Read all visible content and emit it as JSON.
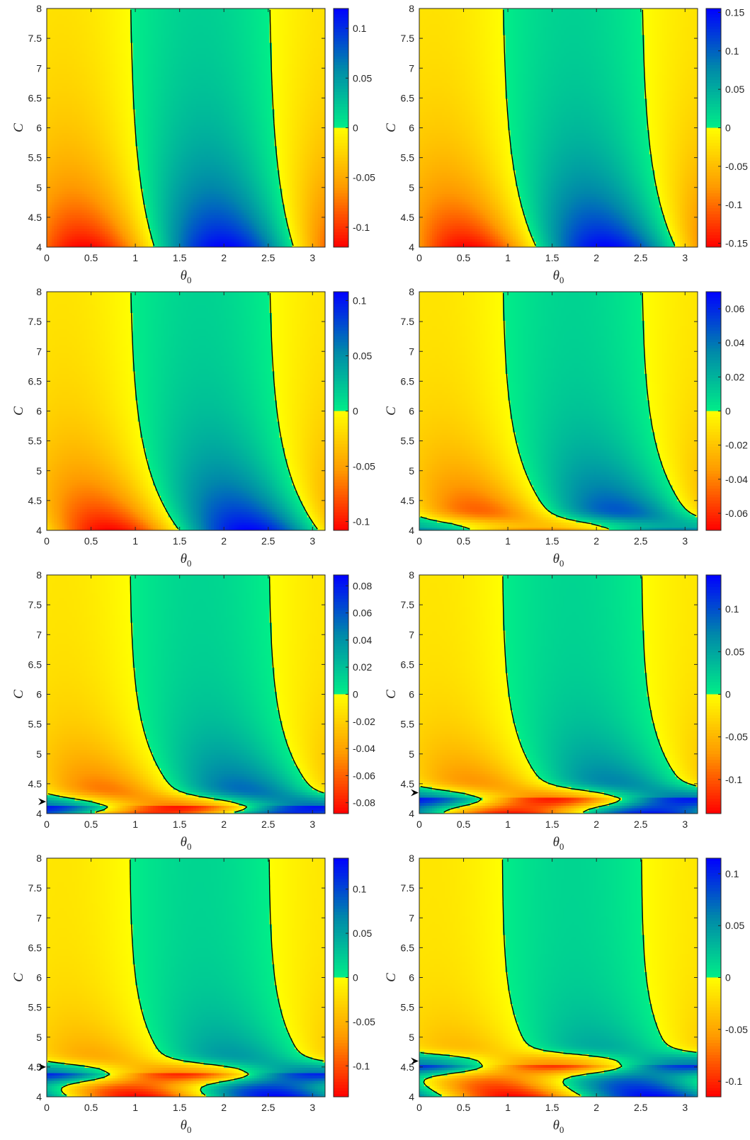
{
  "chart_data": [
    {
      "type": "heatmap",
      "xlabel": "θ",
      "xlabel_sub": "0",
      "ylabel": "C",
      "xlim": [
        0,
        3.1416
      ],
      "ylim": [
        4,
        8
      ],
      "xticks": [
        "0",
        "0.5",
        "1",
        "1.5",
        "2",
        "2.5",
        "3"
      ],
      "yticks": [
        "4",
        "4.5",
        "5",
        "5.5",
        "6",
        "6.5",
        "7",
        "7.5",
        "8"
      ],
      "colorbar": {
        "range": [
          -0.12,
          0.12
        ],
        "ticks": [
          "0.1",
          "0.05",
          "0",
          "-0.05",
          "-0.1"
        ],
        "tick_values": [
          0.1,
          0.05,
          0,
          -0.05,
          -0.1
        ]
      },
      "pattern": {
        "decay": 1.2,
        "curve": 0.8,
        "lowmode": 0,
        "lowy": 4.0,
        "cut": 0
      }
    },
    {
      "type": "heatmap",
      "xlabel": "θ",
      "xlabel_sub": "0",
      "ylabel": "C",
      "xlim": [
        0,
        3.1416
      ],
      "ylim": [
        4,
        8
      ],
      "xticks": [
        "0",
        "0.5",
        "1",
        "1.5",
        "2",
        "2.5",
        "3"
      ],
      "yticks": [
        "4",
        "4.5",
        "5",
        "5.5",
        "6",
        "6.5",
        "7",
        "7.5",
        "8"
      ],
      "colorbar": {
        "range": [
          -0.155,
          0.155
        ],
        "ticks": [
          "0.15",
          "0.1",
          "0.05",
          "0",
          "-0.05",
          "-0.1",
          "-0.15"
        ],
        "tick_values": [
          0.15,
          0.1,
          0.05,
          0,
          -0.05,
          -0.1,
          -0.15
        ]
      },
      "pattern": {
        "decay": 1.1,
        "curve": 1.1,
        "lowmode": 0,
        "lowy": 4.0,
        "cut": 0
      }
    },
    {
      "type": "heatmap",
      "xlabel": "θ",
      "xlabel_sub": "0",
      "ylabel": "C",
      "xlim": [
        0,
        3.1416
      ],
      "ylim": [
        4,
        8
      ],
      "xticks": [
        "0",
        "0.5",
        "1",
        "1.5",
        "2",
        "2.5",
        "3"
      ],
      "yticks": [
        "4",
        "4.5",
        "5",
        "5.5",
        "6",
        "6.5",
        "7",
        "7.5",
        "8"
      ],
      "colorbar": {
        "range": [
          -0.108,
          0.108
        ],
        "ticks": [
          "0.1",
          "0.05",
          "0",
          "-0.05",
          "-0.1"
        ],
        "tick_values": [
          0.1,
          0.05,
          0,
          -0.05,
          -0.1
        ]
      },
      "pattern": {
        "decay": 1.0,
        "curve": 1.6,
        "lowmode": 0,
        "lowy": 4.0,
        "cut": 0
      }
    },
    {
      "type": "heatmap",
      "xlabel": "θ",
      "xlabel_sub": "0",
      "ylabel": "C",
      "xlim": [
        0,
        3.1416
      ],
      "ylim": [
        4,
        8
      ],
      "xticks": [
        "0",
        "0.5",
        "1",
        "1.5",
        "2",
        "2.5",
        "3"
      ],
      "yticks": [
        "4",
        "4.5",
        "5",
        "5.5",
        "6",
        "6.5",
        "7",
        "7.5",
        "8"
      ],
      "colorbar": {
        "range": [
          -0.07,
          0.07
        ],
        "ticks": [
          "0.06",
          "0.04",
          "0.02",
          "0",
          "-0.02",
          "-0.04",
          "-0.06"
        ],
        "tick_values": [
          0.06,
          0.04,
          0.02,
          0,
          -0.02,
          -0.04,
          -0.06
        ]
      },
      "pattern": {
        "decay": 0.9,
        "curve": 2.0,
        "lowmode": 0.5,
        "lowy": 4.05,
        "cut": 0
      }
    },
    {
      "type": "heatmap",
      "xlabel": "θ",
      "xlabel_sub": "0",
      "ylabel": "C",
      "xlim": [
        0,
        3.1416
      ],
      "ylim": [
        4,
        8
      ],
      "xticks": [
        "0",
        "0.5",
        "1",
        "1.5",
        "2",
        "2.5",
        "3"
      ],
      "yticks": [
        "4",
        "4.5",
        "5",
        "5.5",
        "6",
        "6.5",
        "7",
        "7.5",
        "8"
      ],
      "colorbar": {
        "range": [
          -0.088,
          0.088
        ],
        "ticks": [
          "0.08",
          "0.06",
          "0.04",
          "0.02",
          "0",
          "-0.02",
          "-0.04",
          "-0.06",
          "-0.08"
        ],
        "tick_values": [
          0.08,
          0.06,
          0.04,
          0.02,
          0,
          -0.02,
          -0.04,
          -0.06,
          -0.08
        ]
      },
      "pattern": {
        "decay": 0.8,
        "curve": 2.2,
        "lowmode": 1,
        "lowy": 4.12,
        "cut": 4.2
      },
      "annotation": {
        "text": "arrow",
        "c_value": 4.2
      }
    },
    {
      "type": "heatmap",
      "xlabel": "θ",
      "xlabel_sub": "0",
      "ylabel": "C",
      "xlim": [
        0,
        3.1416
      ],
      "ylim": [
        4,
        8
      ],
      "xticks": [
        "0",
        "0.5",
        "1",
        "1.5",
        "2",
        "2.5",
        "3"
      ],
      "yticks": [
        "4",
        "4.5",
        "5",
        "5.5",
        "6",
        "6.5",
        "7",
        "7.5",
        "8"
      ],
      "colorbar": {
        "range": [
          -0.14,
          0.14
        ],
        "ticks": [
          "0.1",
          "0.05",
          "0",
          "-0.05",
          "-0.1"
        ],
        "tick_values": [
          0.1,
          0.05,
          0,
          -0.05,
          -0.1
        ]
      },
      "pattern": {
        "decay": 0.75,
        "curve": 2.4,
        "lowmode": 1,
        "lowy": 4.25,
        "cut": 4.35
      },
      "annotation": {
        "text": "arrow",
        "c_value": 4.35
      }
    },
    {
      "type": "heatmap",
      "xlabel": "θ",
      "xlabel_sub": "0",
      "ylabel": "C",
      "xlim": [
        0,
        3.1416
      ],
      "ylim": [
        4,
        8
      ],
      "xticks": [
        "0",
        "0.5",
        "1",
        "1.5",
        "2",
        "2.5",
        "3"
      ],
      "yticks": [
        "4",
        "4.5",
        "5",
        "5.5",
        "6",
        "6.5",
        "7",
        "7.5",
        "8"
      ],
      "colorbar": {
        "range": [
          -0.135,
          0.135
        ],
        "ticks": [
          "0.1",
          "0.05",
          "0",
          "-0.05",
          "-0.1"
        ],
        "tick_values": [
          0.1,
          0.05,
          0,
          -0.05,
          -0.1
        ]
      },
      "pattern": {
        "decay": 0.7,
        "curve": 2.5,
        "lowmode": 1,
        "lowy": 4.4,
        "cut": 4.5
      },
      "annotation": {
        "text": "arrow",
        "c_value": 4.5
      }
    },
    {
      "type": "heatmap",
      "xlabel": "θ",
      "xlabel_sub": "0",
      "ylabel": "C",
      "xlim": [
        0,
        3.1416
      ],
      "ylim": [
        4,
        8
      ],
      "xticks": [
        "0",
        "0.5",
        "1",
        "1.5",
        "2",
        "2.5",
        "3"
      ],
      "yticks": [
        "4",
        "4.5",
        "5",
        "5.5",
        "6",
        "6.5",
        "7",
        "7.5",
        "8"
      ],
      "colorbar": {
        "range": [
          -0.115,
          0.115
        ],
        "ticks": [
          "0.1",
          "0.05",
          "0",
          "-0.05",
          "-0.1"
        ],
        "tick_values": [
          0.1,
          0.05,
          0,
          -0.05,
          -0.1
        ]
      },
      "pattern": {
        "decay": 0.65,
        "curve": 2.6,
        "lowmode": 1,
        "lowy": 4.55,
        "cut": 4.6
      },
      "annotation": {
        "text": "arrow",
        "c_value": 4.6
      }
    }
  ],
  "colors": {
    "negative_min": "#ff0000",
    "negative_mid": "#ff9900",
    "zero_neg": "#ffff00",
    "zero_pos": "#00ee88",
    "positive_mid": "#0088aa",
    "positive_max": "#0000ff",
    "contour": "#000000",
    "axis": "#262626"
  }
}
